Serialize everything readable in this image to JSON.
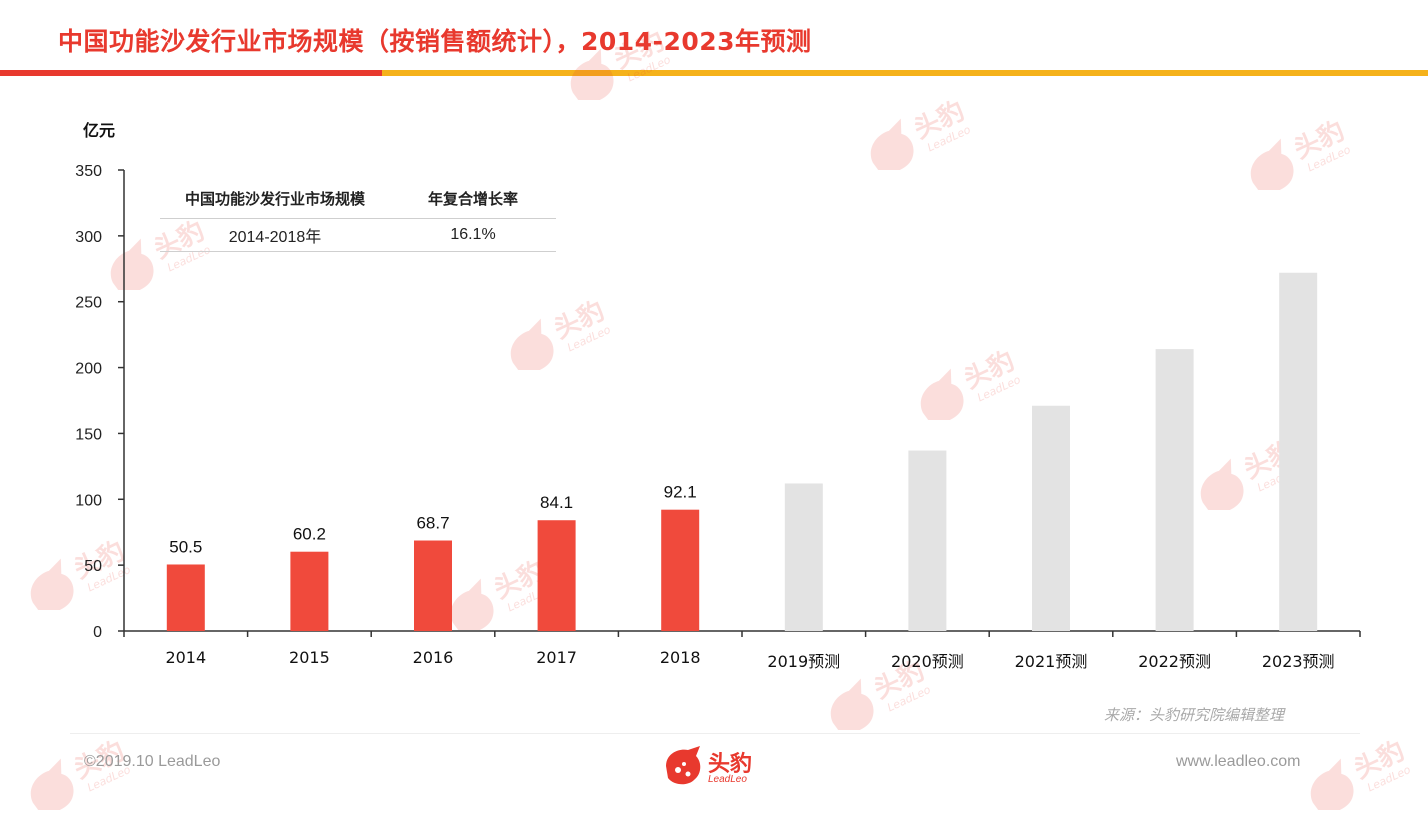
{
  "header": {
    "title": "中国功能沙发行业市场规模（按销售额统计），2014-2023年预测"
  },
  "colors": {
    "accent_red": "#e8392e",
    "accent_yellow": "#f5b21b",
    "bar_actual": "#f04a3c",
    "bar_forecast": "#e3e3e3",
    "axis": "#333333"
  },
  "cagr_table": {
    "headers": [
      "中国功能沙发行业市场规模",
      "年复合增长率"
    ],
    "rows": [
      [
        "2014-2018年",
        "16.1%"
      ]
    ]
  },
  "chart_data": {
    "type": "bar",
    "ylabel": "亿元",
    "ylim": [
      0,
      350
    ],
    "yticks": [
      0,
      50,
      100,
      150,
      200,
      250,
      300,
      350
    ],
    "categories": [
      "2014",
      "2015",
      "2016",
      "2017",
      "2018",
      "2019预测",
      "2020预测",
      "2021预测",
      "2022预测",
      "2023预测"
    ],
    "values": [
      50.5,
      60.2,
      68.7,
      84.1,
      92.1,
      112,
      137,
      171,
      214,
      272
    ],
    "data_labels": [
      "50.5",
      "60.2",
      "68.7",
      "84.1",
      "92.1",
      "",
      "",
      "",
      "",
      ""
    ],
    "forecast": [
      false,
      false,
      false,
      false,
      false,
      true,
      true,
      true,
      true,
      true
    ],
    "grid": false,
    "legend": "none"
  },
  "footer": {
    "source": "来源：头豹研究院编辑整理",
    "copyright": "©2019.10 LeadLeo",
    "website": "www.leadleo.com",
    "logo_name": "头豹",
    "logo_sub": "LeadLeo"
  },
  "watermark": {
    "text": "头豹",
    "sub": "LeadLeo"
  }
}
